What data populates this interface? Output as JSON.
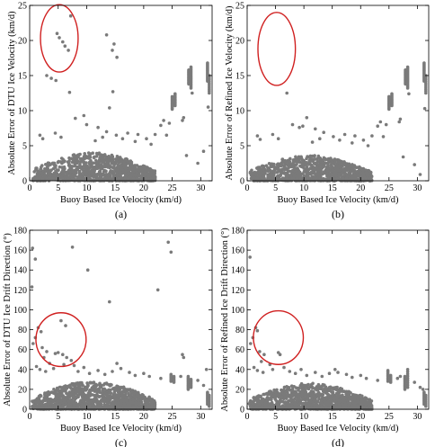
{
  "figure": {
    "panel_count": 4,
    "point_color": "#7a7a7a",
    "highlight_color": "#d02020"
  },
  "chart_data": [
    {
      "type": "scatter",
      "panel_label": "(a)",
      "xlabel": "Buoy Based Ice Velocity (km/d)",
      "ylabel": "Absolute Error of DTU Ice Velocity (km/d)",
      "xlim": [
        0,
        32
      ],
      "ylim": [
        0,
        25
      ],
      "xticks": [
        0,
        5,
        10,
        15,
        20,
        25,
        30
      ],
      "yticks": [
        0,
        5,
        10,
        15,
        20,
        25
      ],
      "grid": false,
      "cluster": {
        "x_range": [
          0.5,
          22
        ],
        "y_max": 4.0,
        "count": 1100,
        "seed": 11
      },
      "outliers": [
        [
          4.8,
          21.0
        ],
        [
          5.2,
          20.4
        ],
        [
          5.8,
          19.8
        ],
        [
          6.2,
          19.2
        ],
        [
          6.8,
          18.6
        ],
        [
          7.2,
          23.5
        ],
        [
          3.0,
          15.0
        ],
        [
          3.8,
          14.6
        ],
        [
          4.6,
          14.3
        ],
        [
          7.0,
          12.6
        ],
        [
          13.5,
          20.8
        ],
        [
          14.5,
          18.6
        ],
        [
          14.8,
          19.5
        ],
        [
          15.3,
          17.6
        ],
        [
          14.6,
          12.7
        ],
        [
          14.0,
          10.4
        ],
        [
          1.8,
          6.5
        ],
        [
          2.3,
          6.0
        ],
        [
          4.5,
          6.8
        ],
        [
          5.5,
          6.2
        ],
        [
          8.0,
          8.9
        ],
        [
          9.5,
          9.3
        ],
        [
          10.0,
          8.0
        ],
        [
          12.0,
          7.6
        ],
        [
          12.8,
          6.2
        ],
        [
          13.5,
          7.0
        ],
        [
          11.5,
          5.7
        ],
        [
          15.2,
          6.5
        ],
        [
          16.3,
          6.0
        ],
        [
          17.2,
          6.8
        ],
        [
          18.5,
          5.6
        ],
        [
          19.0,
          6.6
        ],
        [
          20.5,
          6.0
        ],
        [
          21.3,
          5.2
        ],
        [
          22.0,
          6.6
        ],
        [
          23.0,
          7.9
        ],
        [
          23.5,
          8.6
        ],
        [
          24.5,
          8.2
        ],
        [
          24.0,
          6.5
        ],
        [
          27.0,
          9.0
        ],
        [
          26.8,
          8.6
        ],
        [
          28.5,
          12.5
        ],
        [
          29.5,
          2.5
        ],
        [
          31.3,
          10.5
        ],
        [
          30.5,
          4.2
        ],
        [
          27.5,
          3.6
        ]
      ],
      "columns": [
        {
          "x": 25.0,
          "y_from": 10.2,
          "y_to": 12.0,
          "count": 12
        },
        {
          "x": 25.5,
          "y_from": 10.7,
          "y_to": 12.4,
          "count": 10
        },
        {
          "x": 27.9,
          "y_from": 13.8,
          "y_to": 15.8,
          "count": 14
        },
        {
          "x": 28.3,
          "y_from": 13.2,
          "y_to": 16.2,
          "count": 16
        },
        {
          "x": 31.2,
          "y_from": 14.2,
          "y_to": 16.8,
          "count": 16
        },
        {
          "x": 31.5,
          "y_from": 12.5,
          "y_to": 15.0,
          "count": 10
        }
      ],
      "highlight": {
        "shape": "ellipse",
        "cx": 5.2,
        "cy": 20.3,
        "rx": 3.3,
        "ry": 4.8
      }
    },
    {
      "type": "scatter",
      "panel_label": "(b)",
      "xlabel": "Buoy Based Ice Velocity (km/d)",
      "ylabel": "Absolute Error of Refined Ice Velocity (km/d)",
      "xlim": [
        0,
        32
      ],
      "ylim": [
        0,
        25
      ],
      "xticks": [
        0,
        5,
        10,
        15,
        20,
        25,
        30
      ],
      "yticks": [
        0,
        5,
        10,
        15,
        20,
        25
      ],
      "grid": false,
      "cluster": {
        "x_range": [
          0.5,
          22
        ],
        "y_max": 3.6,
        "count": 1100,
        "seed": 23
      },
      "outliers": [
        [
          7.0,
          12.5
        ],
        [
          1.8,
          6.4
        ],
        [
          2.3,
          5.9
        ],
        [
          4.5,
          6.6
        ],
        [
          5.5,
          6.0
        ],
        [
          8.0,
          8.0
        ],
        [
          9.2,
          7.6
        ],
        [
          9.8,
          7.8
        ],
        [
          10.5,
          9.0
        ],
        [
          12.0,
          7.4
        ],
        [
          12.8,
          6.0
        ],
        [
          13.5,
          6.9
        ],
        [
          11.5,
          5.5
        ],
        [
          15.2,
          6.3
        ],
        [
          16.3,
          5.8
        ],
        [
          17.2,
          6.6
        ],
        [
          18.5,
          5.4
        ],
        [
          19.0,
          6.4
        ],
        [
          20.5,
          5.8
        ],
        [
          21.3,
          5.0
        ],
        [
          22.0,
          6.4
        ],
        [
          23.0,
          7.8
        ],
        [
          23.5,
          8.4
        ],
        [
          24.5,
          8.0
        ],
        [
          24.0,
          6.3
        ],
        [
          27.0,
          8.8
        ],
        [
          26.8,
          8.4
        ],
        [
          28.5,
          12.4
        ],
        [
          29.5,
          2.3
        ],
        [
          31.3,
          10.3
        ],
        [
          30.5,
          0.9
        ],
        [
          27.5,
          3.4
        ]
      ],
      "columns": [
        {
          "x": 25.0,
          "y_from": 10.2,
          "y_to": 12.0,
          "count": 12
        },
        {
          "x": 25.5,
          "y_from": 10.7,
          "y_to": 12.4,
          "count": 10
        },
        {
          "x": 27.9,
          "y_from": 13.8,
          "y_to": 15.8,
          "count": 14
        },
        {
          "x": 28.3,
          "y_from": 13.2,
          "y_to": 16.2,
          "count": 16
        },
        {
          "x": 31.2,
          "y_from": 14.2,
          "y_to": 16.8,
          "count": 16
        },
        {
          "x": 31.5,
          "y_from": 12.5,
          "y_to": 15.0,
          "count": 10
        }
      ],
      "highlight": {
        "shape": "ellipse",
        "cx": 5.2,
        "cy": 18.8,
        "rx": 3.3,
        "ry": 5.2
      }
    },
    {
      "type": "scatter",
      "panel_label": "(c)",
      "xlabel": "Buoy Based Ice Velocity (km/d)",
      "ylabel": "Absolute Error of DTU Ice Drift Direction (°)",
      "xlim": [
        0,
        32
      ],
      "ylim": [
        0,
        180
      ],
      "xticks": [
        0,
        5,
        10,
        15,
        20,
        25,
        30
      ],
      "yticks": [
        0,
        20,
        40,
        60,
        80,
        100,
        120,
        140,
        160,
        180
      ],
      "grid": false,
      "cluster": {
        "x_range": [
          0.3,
          22
        ],
        "y_max": 28,
        "count": 1300,
        "seed": 37
      },
      "outliers": [
        [
          0.5,
          162
        ],
        [
          1.0,
          151
        ],
        [
          0.4,
          123
        ],
        [
          7.5,
          163
        ],
        [
          10.2,
          140
        ],
        [
          14.0,
          108
        ],
        [
          22.5,
          120
        ],
        [
          24.3,
          168
        ],
        [
          24.8,
          158
        ],
        [
          5.5,
          89
        ],
        [
          6.3,
          84
        ],
        [
          1.5,
          82
        ],
        [
          2.0,
          78
        ],
        [
          1.0,
          72
        ],
        [
          0.6,
          66
        ],
        [
          2.2,
          62
        ],
        [
          3.0,
          58
        ],
        [
          2.5,
          52
        ],
        [
          4.5,
          56
        ],
        [
          5.0,
          57
        ],
        [
          5.8,
          55
        ],
        [
          6.5,
          52
        ],
        [
          7.3,
          49
        ],
        [
          3.5,
          46
        ],
        [
          1.2,
          43
        ],
        [
          1.8,
          40
        ],
        [
          2.8,
          38
        ],
        [
          4.2,
          41
        ],
        [
          6.0,
          45
        ],
        [
          7.8,
          44
        ],
        [
          8.5,
          38
        ],
        [
          9.5,
          42
        ],
        [
          10.5,
          36
        ],
        [
          12.0,
          39
        ],
        [
          13.2,
          35
        ],
        [
          14.5,
          38
        ],
        [
          15.3,
          46
        ],
        [
          16.0,
          41
        ],
        [
          17.5,
          37
        ],
        [
          18.5,
          34
        ],
        [
          20.0,
          36
        ],
        [
          21.0,
          33
        ],
        [
          23.0,
          31
        ],
        [
          26.5,
          33
        ],
        [
          27.0,
          52
        ],
        [
          26.8,
          55
        ],
        [
          29.5,
          29
        ],
        [
          30.5,
          24
        ],
        [
          31.0,
          40
        ]
      ],
      "columns": [
        {
          "x": 24.8,
          "y_from": 28,
          "y_to": 35,
          "count": 8
        },
        {
          "x": 25.3,
          "y_from": 27,
          "y_to": 33,
          "count": 6
        },
        {
          "x": 27.8,
          "y_from": 20,
          "y_to": 33,
          "count": 10
        },
        {
          "x": 28.3,
          "y_from": 22,
          "y_to": 30,
          "count": 8
        },
        {
          "x": 31.2,
          "y_from": 5,
          "y_to": 17,
          "count": 10
        },
        {
          "x": 31.5,
          "y_from": 3,
          "y_to": 14,
          "count": 8
        }
      ],
      "highlight": {
        "shape": "ellipse",
        "cx": 5.5,
        "cy": 70,
        "rx": 4.4,
        "ry": 27
      }
    },
    {
      "type": "scatter",
      "panel_label": "(d)",
      "xlabel": "Buoy Based Ice Velocity (km/d)",
      "ylabel": "Absolute Error of Refined Ice Drift Direction (°)",
      "xlim": [
        0,
        32
      ],
      "ylim": [
        0,
        180
      ],
      "xticks": [
        0,
        5,
        10,
        15,
        20,
        25,
        30
      ],
      "yticks": [
        0,
        20,
        40,
        60,
        80,
        100,
        120,
        140,
        160,
        180
      ],
      "grid": false,
      "cluster": {
        "x_range": [
          0.3,
          22
        ],
        "y_max": 26,
        "count": 1300,
        "seed": 53
      },
      "outliers": [
        [
          0.5,
          153
        ],
        [
          1.5,
          82
        ],
        [
          1.8,
          79
        ],
        [
          1.0,
          72
        ],
        [
          0.6,
          66
        ],
        [
          2.2,
          58
        ],
        [
          3.0,
          55
        ],
        [
          5.5,
          57
        ],
        [
          5.8,
          55
        ],
        [
          2.5,
          48
        ],
        [
          4.0,
          45
        ],
        [
          1.2,
          42
        ],
        [
          1.8,
          39
        ],
        [
          2.8,
          37
        ],
        [
          4.5,
          40
        ],
        [
          6.5,
          42
        ],
        [
          7.5,
          38
        ],
        [
          8.5,
          36
        ],
        [
          9.5,
          40
        ],
        [
          10.5,
          34
        ],
        [
          12.0,
          37
        ],
        [
          13.2,
          33
        ],
        [
          14.5,
          36
        ],
        [
          15.5,
          40
        ],
        [
          16.0,
          37
        ],
        [
          17.5,
          35
        ],
        [
          18.5,
          32
        ],
        [
          20.0,
          34
        ],
        [
          21.0,
          31
        ],
        [
          23.0,
          29
        ],
        [
          26.5,
          31
        ],
        [
          27.0,
          33
        ],
        [
          29.5,
          27
        ],
        [
          30.5,
          22
        ],
        [
          31.0,
          20
        ]
      ],
      "columns": [
        {
          "x": 24.8,
          "y_from": 28,
          "y_to": 39,
          "count": 8
        },
        {
          "x": 25.3,
          "y_from": 27,
          "y_to": 34,
          "count": 6
        },
        {
          "x": 27.8,
          "y_from": 20,
          "y_to": 33,
          "count": 10
        },
        {
          "x": 28.3,
          "y_from": 22,
          "y_to": 40,
          "count": 9
        },
        {
          "x": 31.2,
          "y_from": 5,
          "y_to": 17,
          "count": 10
        },
        {
          "x": 31.5,
          "y_from": 3,
          "y_to": 14,
          "count": 8
        }
      ],
      "highlight": {
        "shape": "ellipse",
        "cx": 5.5,
        "cy": 72,
        "rx": 4.4,
        "ry": 27
      }
    }
  ]
}
